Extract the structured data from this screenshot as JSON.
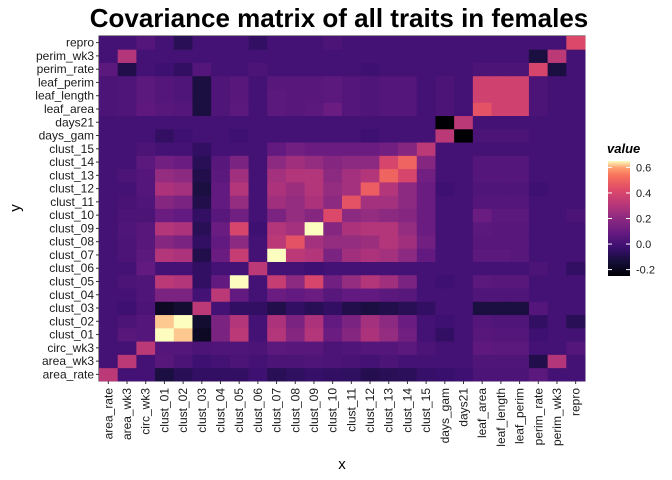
{
  "chart_data": {
    "type": "heatmap",
    "title": "Covariance matrix of all traits in females",
    "xlabel": "x",
    "ylabel": "y",
    "categories": [
      "area_rate",
      "area_wk3",
      "circ_wk3",
      "clust_01",
      "clust_02",
      "clust_03",
      "clust_04",
      "clust_05",
      "clust_06",
      "clust_07",
      "clust_08",
      "clust_09",
      "clust_10",
      "clust_11",
      "clust_12",
      "clust_13",
      "clust_14",
      "clust_15",
      "days_gam",
      "days21",
      "leaf_area",
      "leaf_length",
      "leaf_perim",
      "perim_rate",
      "perim_wk3",
      "repro"
    ],
    "legend": {
      "title": "value",
      "ticks": [
        0.6,
        0.4,
        0.2,
        0.0,
        -0.2
      ],
      "tick_labels": [
        "0.6",
        "0.4",
        "0.2",
        "0.0",
        "-0.2"
      ],
      "range": [
        -0.25,
        0.65
      ],
      "position": "right"
    },
    "colormap": "magma",
    "values": [
      [
        0.32,
        0.0,
        0.0,
        -0.12,
        -0.08,
        -0.05,
        -0.05,
        -0.05,
        -0.02,
        -0.08,
        -0.06,
        -0.04,
        -0.05,
        -0.06,
        -0.09,
        -0.08,
        -0.07,
        -0.04,
        -0.03,
        -0.02,
        0.02,
        0.02,
        0.02,
        0.06,
        0.0,
        0.0
      ],
      [
        0.0,
        0.32,
        0.0,
        0.05,
        0.02,
        -0.02,
        0.0,
        0.02,
        0.0,
        0.02,
        0.02,
        0.03,
        0.02,
        0.01,
        0.0,
        0.02,
        0.0,
        0.0,
        0.0,
        0.0,
        0.03,
        0.03,
        0.03,
        -0.1,
        0.3,
        0.0
      ],
      [
        0.0,
        0.0,
        0.32,
        0.04,
        0.04,
        0.02,
        0.03,
        0.03,
        0.02,
        0.06,
        0.05,
        0.05,
        0.02,
        0.03,
        0.04,
        0.04,
        0.06,
        0.02,
        0.0,
        0.0,
        0.07,
        0.06,
        0.06,
        0.0,
        0.0,
        0.04
      ],
      [
        0.0,
        0.05,
        0.04,
        0.65,
        0.62,
        -0.18,
        0.15,
        0.32,
        0.0,
        0.3,
        0.18,
        0.3,
        0.1,
        0.18,
        0.28,
        0.22,
        0.12,
        0.0,
        -0.05,
        0.0,
        0.05,
        0.04,
        0.04,
        -0.02,
        0.0,
        0.0
      ],
      [
        0.0,
        0.02,
        0.04,
        0.62,
        0.65,
        -0.15,
        0.15,
        0.3,
        0.0,
        0.28,
        0.15,
        0.28,
        0.08,
        0.15,
        0.26,
        0.2,
        0.1,
        0.0,
        -0.02,
        0.0,
        0.04,
        0.03,
        0.03,
        -0.05,
        0.0,
        -0.08
      ],
      [
        0.0,
        -0.02,
        0.02,
        -0.18,
        -0.15,
        0.32,
        0.0,
        -0.05,
        -0.05,
        -0.1,
        -0.05,
        -0.08,
        -0.05,
        -0.1,
        -0.12,
        -0.1,
        -0.08,
        -0.05,
        0.0,
        0.0,
        -0.12,
        -0.12,
        -0.12,
        0.04,
        0.0,
        0.0
      ],
      [
        0.0,
        0.0,
        0.03,
        0.15,
        0.15,
        0.0,
        0.32,
        0.08,
        0.0,
        0.1,
        0.08,
        0.1,
        0.05,
        0.08,
        0.08,
        0.06,
        0.05,
        0.0,
        0.0,
        0.0,
        0.03,
        0.03,
        0.03,
        0.0,
        0.0,
        0.0
      ],
      [
        0.0,
        0.02,
        0.03,
        0.32,
        0.3,
        -0.05,
        0.08,
        0.65,
        0.0,
        0.35,
        0.2,
        0.4,
        0.12,
        0.22,
        0.3,
        0.25,
        0.15,
        0.0,
        -0.02,
        0.0,
        0.06,
        0.05,
        0.05,
        0.0,
        0.0,
        0.0
      ],
      [
        0.0,
        0.0,
        0.08,
        0.0,
        0.0,
        -0.05,
        0.0,
        0.0,
        0.32,
        0.0,
        0.0,
        -0.02,
        0.0,
        0.0,
        0.0,
        0.0,
        0.0,
        0.0,
        0.0,
        0.0,
        0.0,
        0.0,
        0.0,
        0.02,
        0.0,
        -0.05
      ],
      [
        0.0,
        0.02,
        0.06,
        0.3,
        0.28,
        -0.1,
        0.1,
        0.35,
        0.0,
        0.65,
        0.32,
        0.3,
        0.15,
        0.25,
        0.28,
        0.26,
        0.2,
        0.08,
        0.0,
        0.0,
        0.06,
        0.06,
        0.05,
        0.0,
        0.0,
        0.0
      ],
      [
        0.0,
        0.02,
        0.05,
        0.18,
        0.15,
        -0.05,
        0.08,
        0.2,
        0.0,
        0.32,
        0.45,
        0.26,
        0.22,
        0.22,
        0.24,
        0.3,
        0.25,
        0.12,
        0.0,
        0.0,
        0.05,
        0.05,
        0.05,
        0.0,
        0.0,
        0.0
      ],
      [
        0.0,
        0.03,
        0.05,
        0.3,
        0.28,
        -0.08,
        0.1,
        0.4,
        -0.02,
        0.3,
        0.26,
        0.65,
        0.18,
        0.28,
        0.3,
        0.3,
        0.22,
        0.1,
        0.0,
        0.0,
        0.06,
        0.05,
        0.05,
        0.0,
        0.0,
        0.0
      ],
      [
        0.0,
        0.02,
        0.02,
        0.1,
        0.08,
        -0.05,
        0.05,
        0.12,
        0.0,
        0.15,
        0.22,
        0.18,
        0.42,
        0.2,
        0.22,
        0.2,
        0.18,
        0.1,
        0.0,
        0.0,
        0.1,
        0.06,
        0.06,
        0.0,
        0.0,
        0.02
      ],
      [
        0.0,
        0.01,
        0.03,
        0.18,
        0.15,
        -0.1,
        0.08,
        0.22,
        0.0,
        0.25,
        0.22,
        0.28,
        0.2,
        0.45,
        0.26,
        0.26,
        0.2,
        0.1,
        0.0,
        0.0,
        0.04,
        0.04,
        0.04,
        0.0,
        0.0,
        0.0
      ],
      [
        0.0,
        0.0,
        0.04,
        0.28,
        0.26,
        -0.12,
        0.08,
        0.3,
        0.0,
        0.28,
        0.24,
        0.3,
        0.22,
        0.26,
        0.48,
        0.3,
        0.2,
        0.1,
        -0.02,
        0.0,
        0.03,
        0.03,
        0.03,
        -0.02,
        0.0,
        0.0
      ],
      [
        0.0,
        0.02,
        0.04,
        0.22,
        0.2,
        -0.1,
        0.06,
        0.25,
        0.0,
        0.26,
        0.3,
        0.3,
        0.2,
        0.26,
        0.3,
        0.5,
        0.4,
        0.12,
        0.0,
        0.0,
        0.04,
        0.04,
        0.04,
        0.0,
        0.0,
        0.0
      ],
      [
        0.0,
        0.0,
        0.06,
        0.12,
        0.1,
        -0.08,
        0.05,
        0.15,
        0.0,
        0.2,
        0.25,
        0.22,
        0.18,
        0.2,
        0.2,
        0.4,
        0.5,
        0.18,
        0.0,
        0.0,
        0.04,
        0.04,
        0.04,
        0.0,
        0.0,
        0.0
      ],
      [
        0.0,
        0.0,
        0.02,
        0.0,
        0.0,
        -0.05,
        0.0,
        0.0,
        0.0,
        0.08,
        0.12,
        0.1,
        0.1,
        0.1,
        0.1,
        0.12,
        0.18,
        0.32,
        0.0,
        0.0,
        0.0,
        0.0,
        0.0,
        0.0,
        0.0,
        0.0
      ],
      [
        0.0,
        0.0,
        0.0,
        -0.05,
        -0.02,
        0.0,
        0.0,
        -0.02,
        0.0,
        0.0,
        0.0,
        0.0,
        0.0,
        0.0,
        -0.02,
        0.0,
        0.0,
        0.0,
        0.32,
        -0.25,
        0.02,
        0.02,
        0.02,
        0.0,
        0.0,
        0.0
      ],
      [
        0.0,
        0.0,
        0.0,
        0.0,
        0.0,
        0.0,
        0.0,
        0.0,
        0.0,
        0.0,
        0.0,
        0.0,
        0.0,
        0.0,
        0.0,
        0.0,
        0.0,
        0.0,
        -0.25,
        0.32,
        0.0,
        0.0,
        0.0,
        0.0,
        0.0,
        0.0
      ],
      [
        0.02,
        0.03,
        0.07,
        0.05,
        0.04,
        -0.12,
        0.03,
        0.06,
        0.0,
        0.06,
        0.05,
        0.06,
        0.1,
        0.04,
        0.03,
        0.04,
        0.04,
        0.0,
        0.02,
        0.0,
        0.45,
        0.38,
        0.38,
        0.02,
        0.0,
        0.0
      ],
      [
        0.02,
        0.03,
        0.06,
        0.04,
        0.03,
        -0.12,
        0.03,
        0.05,
        0.0,
        0.06,
        0.05,
        0.05,
        0.06,
        0.04,
        0.03,
        0.04,
        0.04,
        0.0,
        0.02,
        0.0,
        0.38,
        0.38,
        0.38,
        0.02,
        0.0,
        0.0
      ],
      [
        0.02,
        0.03,
        0.06,
        0.04,
        0.03,
        -0.12,
        0.03,
        0.05,
        0.0,
        0.05,
        0.05,
        0.05,
        0.06,
        0.04,
        0.03,
        0.04,
        0.04,
        0.0,
        0.02,
        0.0,
        0.38,
        0.38,
        0.38,
        0.02,
        0.0,
        0.0
      ],
      [
        0.06,
        -0.1,
        0.0,
        -0.02,
        -0.05,
        0.04,
        0.0,
        0.0,
        0.02,
        0.0,
        0.0,
        0.0,
        0.0,
        0.0,
        -0.02,
        0.0,
        0.0,
        0.0,
        0.0,
        0.0,
        0.02,
        0.02,
        0.02,
        0.4,
        -0.12,
        0.0
      ],
      [
        0.0,
        0.3,
        0.0,
        0.0,
        0.0,
        0.0,
        0.0,
        0.0,
        0.0,
        0.0,
        0.0,
        0.0,
        0.0,
        0.0,
        0.0,
        0.0,
        0.0,
        0.0,
        0.0,
        0.0,
        0.0,
        0.0,
        0.0,
        -0.12,
        0.32,
        0.0
      ],
      [
        0.0,
        0.0,
        0.04,
        0.0,
        -0.08,
        0.0,
        0.0,
        0.0,
        -0.05,
        0.0,
        0.0,
        0.0,
        0.02,
        0.0,
        0.0,
        0.0,
        0.0,
        0.0,
        0.0,
        0.0,
        0.0,
        0.0,
        0.0,
        0.0,
        0.0,
        0.42
      ]
    ]
  }
}
